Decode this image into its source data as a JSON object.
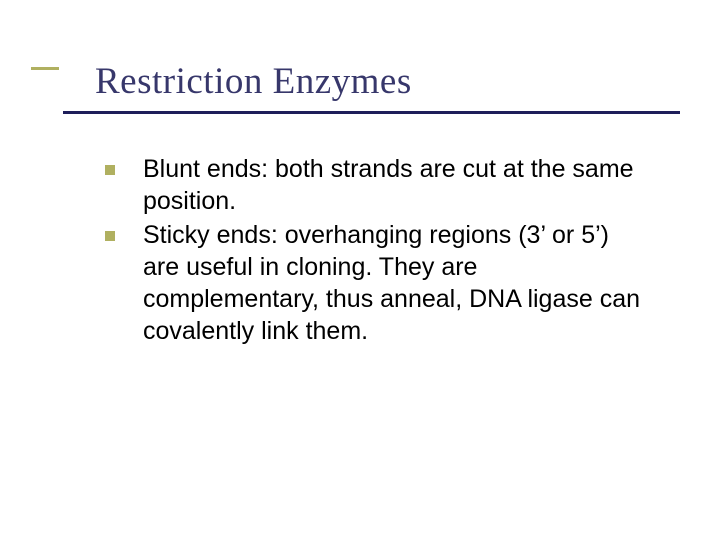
{
  "slide": {
    "title": "Restriction Enzymes",
    "accent_color": "#b0b060",
    "title_color": "#37376b",
    "underline_color": "#1e1e5a",
    "text_color": "#000000",
    "background_color": "#ffffff",
    "title_fontsize": 37,
    "body_fontsize": 25,
    "bullets": [
      {
        "text": "Blunt ends: both strands are cut at the same position."
      },
      {
        "text": "Sticky ends: overhanging regions (3’ or 5’) are useful in cloning.  They are complementary, thus anneal, DNA ligase can covalently link them."
      }
    ]
  }
}
